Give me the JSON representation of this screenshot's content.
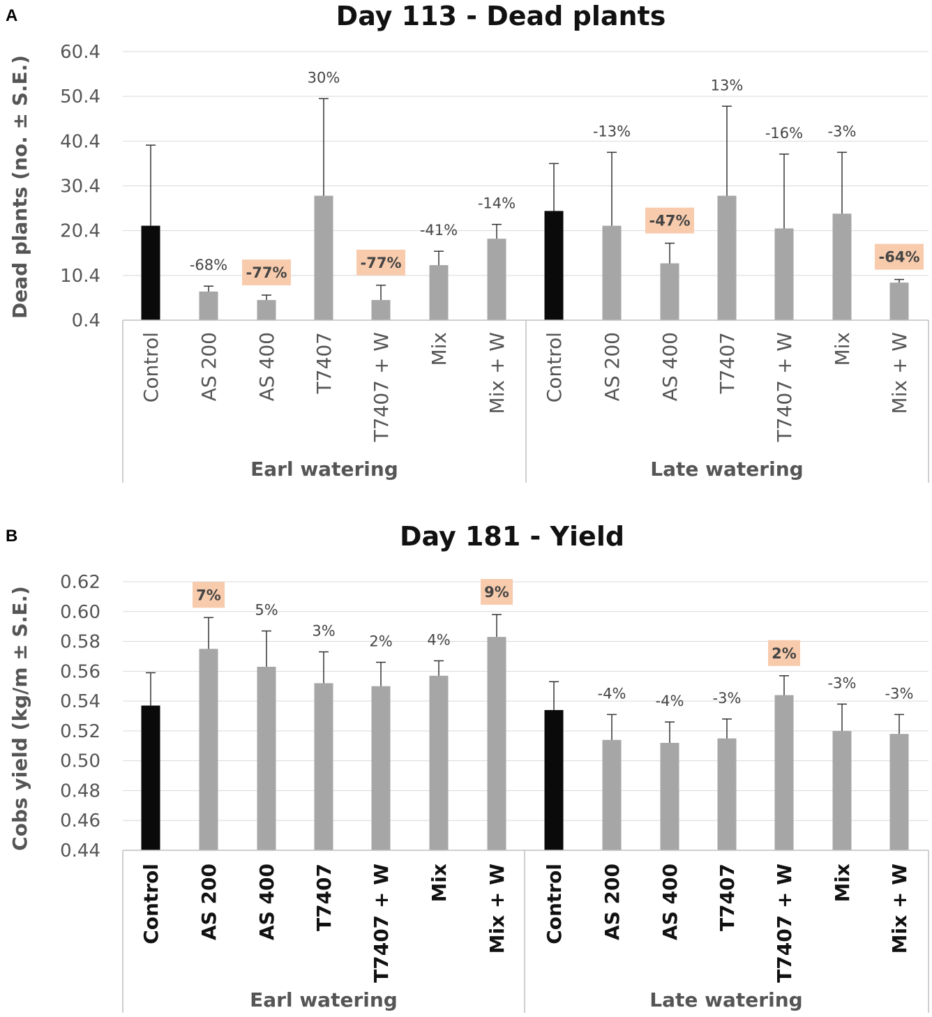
{
  "chart_data": [
    {
      "panel": "A",
      "type": "bar",
      "title": "Day 113 - Dead plants",
      "ylabel": "Dead plants (no. ± S.E.)",
      "ylim": [
        0.4,
        60.4
      ],
      "yticks": [
        "0.4",
        "10.4",
        "20.4",
        "30.4",
        "40.4",
        "50.4",
        "60.4"
      ],
      "groups": [
        "Earl watering",
        "Late watering"
      ],
      "categories": [
        "Control",
        "AS 200",
        "AS 400",
        "T7407",
        "T7407 + W",
        "Mix",
        "Mix + W",
        "Control",
        "AS 200",
        "AS 400",
        "T7407",
        "T7407 + W",
        "Mix",
        "Mix + W"
      ],
      "values": [
        21.5,
        6.8,
        4.9,
        28.2,
        4.9,
        12.7,
        18.6,
        24.8,
        21.5,
        13.1,
        28.2,
        20.9,
        24.2,
        8.8
      ],
      "errors": [
        18.0,
        1.2,
        1.1,
        21.7,
        3.3,
        3.1,
        3.2,
        10.6,
        16.4,
        4.5,
        20.0,
        16.6,
        13.7,
        0.7
      ],
      "labels": [
        "",
        "-68%",
        "-77%",
        "30%",
        "-77%",
        "-41%",
        "-14%",
        "",
        "-13%",
        "-47%",
        "13%",
        "-16%",
        "-3%",
        "-64%"
      ],
      "highlighted": [
        false,
        false,
        true,
        false,
        true,
        false,
        false,
        false,
        false,
        true,
        false,
        false,
        false,
        true
      ],
      "colors": {
        "control": "#0a0a0a",
        "treatment": "#a6a6a6",
        "highlight": "#f8cbad"
      }
    },
    {
      "panel": "B",
      "type": "bar",
      "title": "Day 181 - Yield",
      "ylabel": "Cobs yield (kg/m ± S.E.)",
      "ylim": [
        0.44,
        0.62
      ],
      "yticks": [
        "0.44",
        "0.46",
        "0.48",
        "0.50",
        "0.52",
        "0.54",
        "0.56",
        "0.58",
        "0.60",
        "0.62"
      ],
      "groups": [
        "Earl watering",
        "Late watering"
      ],
      "categories": [
        "Control",
        "AS 200",
        "AS 400",
        "T7407",
        "T7407 + W",
        "Mix",
        "Mix + W",
        "Control",
        "AS 200",
        "AS 400",
        "T7407",
        "T7407 + W",
        "Mix",
        "Mix + W"
      ],
      "values": [
        0.537,
        0.575,
        0.563,
        0.552,
        0.55,
        0.557,
        0.583,
        0.534,
        0.514,
        0.512,
        0.515,
        0.544,
        0.52,
        0.518
      ],
      "errors": [
        0.022,
        0.021,
        0.024,
        0.021,
        0.016,
        0.01,
        0.015,
        0.019,
        0.017,
        0.014,
        0.013,
        0.013,
        0.018,
        0.013
      ],
      "labels": [
        "",
        "7%",
        "5%",
        "3%",
        "2%",
        "4%",
        "9%",
        "",
        "-4%",
        "-4%",
        "-3%",
        "2%",
        "-3%",
        "-3%"
      ],
      "highlighted": [
        false,
        true,
        false,
        false,
        false,
        false,
        true,
        false,
        false,
        false,
        false,
        true,
        false,
        false
      ],
      "colors": {
        "control": "#0a0a0a",
        "treatment": "#a6a6a6",
        "highlight": "#f8cbad"
      }
    }
  ]
}
